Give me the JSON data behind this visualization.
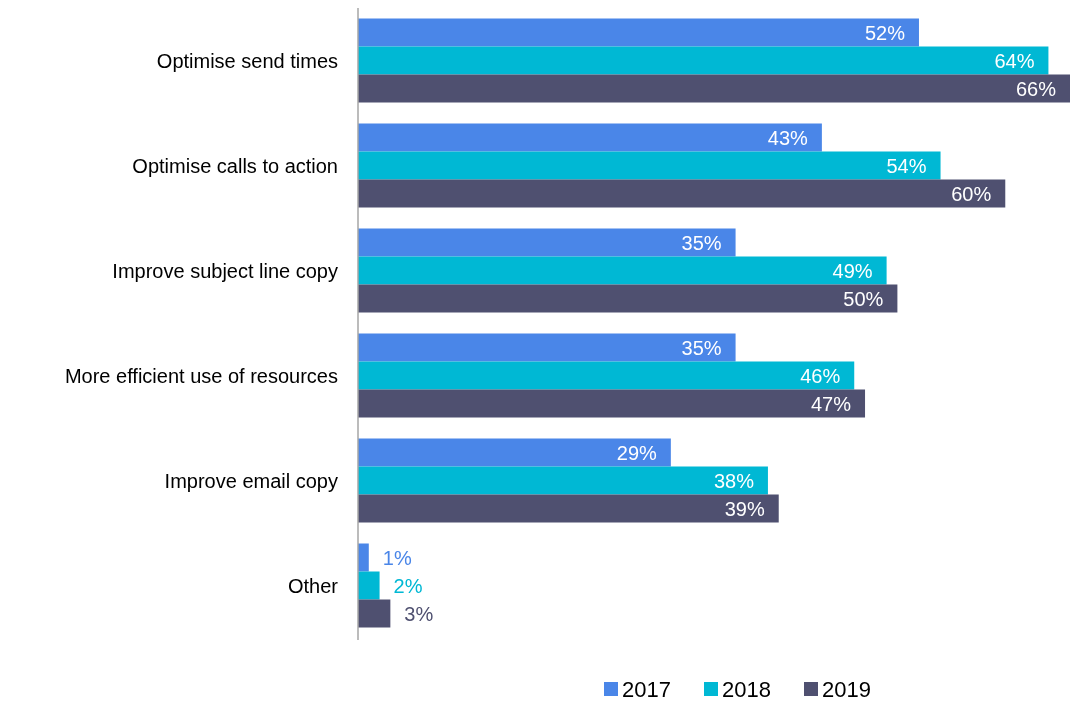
{
  "chart_data": {
    "type": "bar",
    "orientation": "horizontal",
    "categories": [
      "Optimise send times",
      "Optimise calls to action",
      "Improve subject line copy",
      "More efficient use of resources",
      "Improve email copy",
      "Other"
    ],
    "series": [
      {
        "name": "2017",
        "color": "#4a86e8",
        "values": [
          52,
          43,
          35,
          35,
          29,
          1
        ],
        "value_labels": [
          "52%",
          "43%",
          "35%",
          "35%",
          "29%",
          "1%"
        ]
      },
      {
        "name": "2018",
        "color": "#00b8d4",
        "values": [
          64,
          54,
          49,
          46,
          38,
          2
        ],
        "value_labels": [
          "64%",
          "54%",
          "49%",
          "46%",
          "38%",
          "2%"
        ]
      },
      {
        "name": "2019",
        "color": "#4f5070",
        "values": [
          66,
          60,
          50,
          47,
          39,
          3
        ],
        "value_labels": [
          "66%",
          "60%",
          "50%",
          "47%",
          "39%",
          "3%"
        ]
      }
    ],
    "legend": "bottom"
  }
}
